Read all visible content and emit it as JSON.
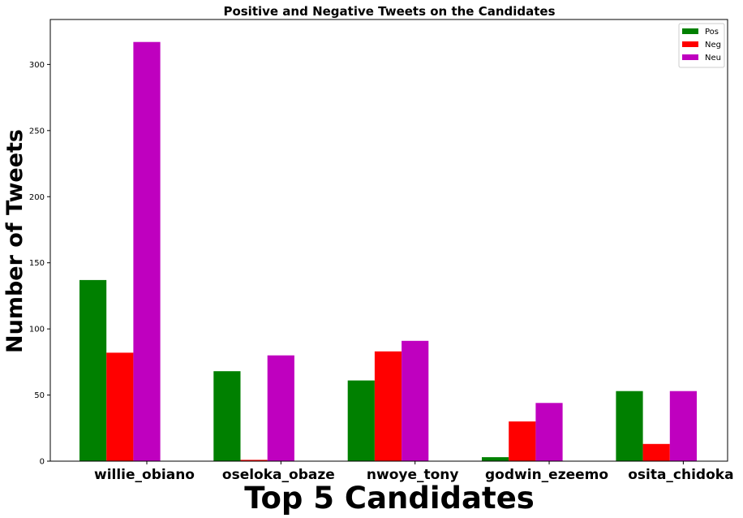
{
  "chart_data": {
    "type": "bar",
    "title": "Positive and Negative Tweets on the Candidates",
    "xlabel": "Top 5 Candidates",
    "ylabel": "Number of Tweets",
    "categories": [
      "willie_obiano",
      "oseloka_obaze",
      "nwoye_tony",
      "godwin_ezeemo",
      "osita_chidoka"
    ],
    "series": [
      {
        "name": "Pos",
        "color": "#008000",
        "values": [
          137,
          68,
          61,
          3,
          53
        ]
      },
      {
        "name": "Neg",
        "color": "#ff0000",
        "values": [
          82,
          1,
          83,
          30,
          13
        ]
      },
      {
        "name": "Neu",
        "color": "#bf00bf",
        "values": [
          317,
          80,
          91,
          44,
          53
        ]
      }
    ],
    "ylim": [
      0,
      334
    ],
    "yticks": [
      0,
      50,
      100,
      150,
      200,
      250,
      300
    ],
    "grid": false,
    "legend_position": "top-right"
  }
}
